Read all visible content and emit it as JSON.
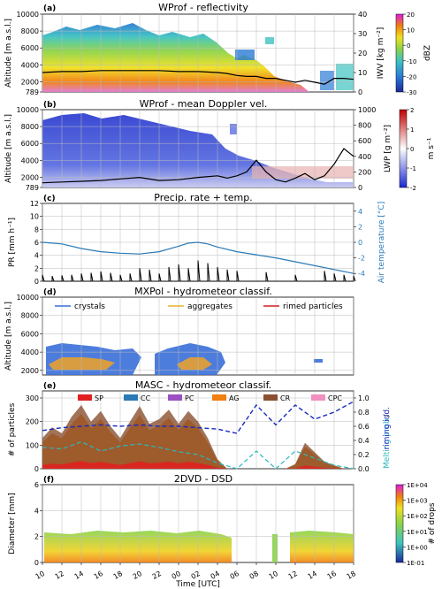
{
  "chart_data": [
    {
      "panel": "(a)",
      "title": "WProf - reflectivity",
      "type": "heatmap",
      "ylabel": "Altitude [m a.s.l.]",
      "yticks": [
        789,
        2000,
        4000,
        6000,
        8000,
        10000
      ],
      "ylim": [
        789,
        10000
      ],
      "y2label": "IWV [kg m⁻²]",
      "y2ticks": [
        0,
        10,
        20,
        30,
        40
      ],
      "y2lim": [
        0,
        40
      ],
      "colorbar": {
        "label": "dBZ",
        "ticks": [
          -30,
          -20,
          -10,
          0,
          10,
          20
        ],
        "range": [
          -30,
          20
        ]
      },
      "overlay_series": {
        "name": "IWV",
        "x_hours": [
          10,
          12,
          14,
          16,
          18,
          20,
          22,
          24,
          26,
          28,
          29,
          30,
          31,
          32,
          33,
          34,
          35,
          36,
          37,
          38,
          39,
          40,
          41,
          42
        ],
        "values": [
          10,
          10.5,
          10.5,
          11,
          11,
          11,
          11,
          10.5,
          10.5,
          10,
          9.5,
          8.5,
          8,
          8,
          7,
          7,
          6,
          5,
          6,
          5,
          4,
          7,
          7,
          6.5
        ]
      }
    },
    {
      "panel": "(b)",
      "title": "WProf - mean Doppler vel.",
      "type": "heatmap",
      "ylabel": "Altitude [m a.s.l.]",
      "yticks": [
        789,
        2000,
        4000,
        6000,
        8000,
        10000
      ],
      "ylim": [
        789,
        10000
      ],
      "y2label": "LWP [g m⁻²]",
      "y2ticks": [
        0,
        200,
        400,
        600,
        800,
        1000
      ],
      "y2lim": [
        0,
        1000
      ],
      "colorbar": {
        "label": "m s⁻¹",
        "ticks": [
          -2,
          -1,
          0,
          1,
          2
        ],
        "range": [
          -2,
          2
        ]
      },
      "overlay_series": {
        "name": "LWP",
        "x_hours": [
          10,
          12,
          14,
          16,
          18,
          20,
          22,
          24,
          26,
          28,
          29,
          30,
          31,
          32,
          33,
          34,
          35,
          36,
          37,
          38,
          39,
          40,
          41,
          42
        ],
        "values": [
          60,
          70,
          80,
          90,
          110,
          130,
          90,
          100,
          130,
          150,
          120,
          150,
          200,
          350,
          200,
          100,
          70,
          120,
          180,
          100,
          150,
          300,
          500,
          400
        ]
      }
    },
    {
      "panel": "(c)",
      "title": "Precip. rate + temp.",
      "type": "line",
      "ylabel": "PR [mm h⁻¹]",
      "yticks": [
        0,
        2,
        4,
        6,
        8,
        10,
        12
      ],
      "ylim": [
        0,
        12
      ],
      "y2label": "Air temperature [°C]",
      "y2ticks": [
        -4,
        -2,
        0,
        2,
        4
      ],
      "y2lim": [
        -5,
        5
      ],
      "series": [
        {
          "name": "Air temperature",
          "x_hours": [
            10,
            12,
            14,
            16,
            18,
            20,
            22,
            24,
            25,
            26,
            27,
            28,
            30,
            32,
            34,
            36,
            38,
            40,
            42
          ],
          "values": [
            0.0,
            -0.2,
            -0.8,
            -1.2,
            -1.4,
            -1.5,
            -1.2,
            -0.5,
            -0.1,
            0.0,
            -0.2,
            -0.6,
            -1.2,
            -1.6,
            -2.0,
            -2.5,
            -3.0,
            -3.5,
            -4.0
          ]
        },
        {
          "name": "Precipitation rate",
          "x_hours": [
            10,
            11,
            12,
            13,
            14,
            15,
            16,
            17,
            18,
            19,
            20,
            21,
            22,
            23,
            24,
            25,
            26,
            27,
            28,
            29,
            30,
            33,
            36,
            39,
            40,
            41,
            42
          ],
          "values": [
            1.0,
            0.8,
            0.9,
            1.0,
            1.2,
            1.3,
            1.5,
            1.3,
            1.0,
            1.2,
            2.0,
            1.8,
            1.2,
            2.2,
            2.6,
            2.0,
            3.2,
            2.8,
            2.2,
            1.8,
            1.6,
            1.4,
            1.0,
            1.6,
            1.2,
            1.0,
            0.8
          ]
        }
      ]
    },
    {
      "panel": "(d)",
      "title": "MXPol - hydrometeor classif.",
      "type": "heatmap",
      "ylabel": "Altitude [m a.s.l.]",
      "yticks": [
        2000,
        4000,
        6000,
        8000,
        10000
      ],
      "ylim": [
        1500,
        10000
      ],
      "legend": [
        "crystals",
        "aggregates",
        "rimed particles"
      ]
    },
    {
      "panel": "(e)",
      "title": "MASC - hydrometeor classif.",
      "type": "area",
      "ylabel": "# of particles",
      "yticks": [
        0,
        100,
        200,
        300
      ],
      "ylim": [
        0,
        330
      ],
      "y2label_a": "Melting prob.",
      "y2label_b": "riming ind.",
      "y2ticks": [
        0.0,
        0.2,
        0.4,
        0.6,
        0.8,
        1.0
      ],
      "y2lim": [
        0,
        1.1
      ],
      "legend": [
        "SP",
        "CC",
        "PC",
        "AG",
        "CR",
        "CPC"
      ],
      "series": [
        {
          "name": "AG total",
          "x_hours": [
            10,
            11,
            12,
            13,
            14,
            15,
            16,
            17,
            18,
            19,
            20,
            21,
            22,
            23,
            24,
            25,
            26,
            27,
            28,
            29,
            30,
            35,
            36,
            37,
            38,
            39,
            40,
            41,
            42
          ],
          "values": [
            130,
            175,
            150,
            220,
            270,
            200,
            245,
            180,
            130,
            200,
            265,
            190,
            210,
            250,
            190,
            245,
            200,
            130,
            40,
            0,
            0,
            0,
            20,
            110,
            70,
            30,
            15,
            0,
            0
          ]
        },
        {
          "name": "riming ind.",
          "x_hours": [
            10,
            12,
            14,
            16,
            18,
            20,
            22,
            24,
            26,
            28,
            30,
            32,
            34,
            36,
            38,
            40,
            42
          ],
          "values": [
            0.54,
            0.58,
            0.6,
            0.62,
            0.6,
            0.62,
            0.6,
            0.6,
            0.58,
            0.56,
            0.5,
            0.9,
            0.62,
            0.9,
            0.7,
            0.8,
            0.95
          ]
        },
        {
          "name": "Melting prob.",
          "x_hours": [
            10,
            12,
            14,
            16,
            18,
            20,
            22,
            24,
            26,
            28,
            30,
            32,
            34,
            36,
            38,
            40,
            42
          ],
          "values": [
            0.3,
            0.28,
            0.38,
            0.25,
            0.32,
            0.35,
            0.3,
            0.24,
            0.2,
            0.08,
            0.0,
            0.25,
            0.0,
            0.25,
            0.15,
            0.05,
            0.0
          ]
        }
      ]
    },
    {
      "panel": "(f)",
      "title": "2DVD - DSD",
      "type": "heatmap",
      "ylabel": "Diameter [mm]",
      "yticks": [
        0,
        2,
        4,
        6
      ],
      "ylim": [
        0,
        6
      ],
      "colorbar": {
        "label": "# of drops",
        "ticks": [
          "1E-01",
          "1E+00",
          "1E+01",
          "1E+02",
          "1E+03",
          "1E+04"
        ]
      },
      "xlabel": "Time [UTC]",
      "xticks": [
        "10",
        "12",
        "14",
        "16",
        "18",
        "20",
        "22",
        "00",
        "02",
        "04",
        "06",
        "08",
        "10",
        "12",
        "14",
        "16",
        "18"
      ]
    }
  ]
}
